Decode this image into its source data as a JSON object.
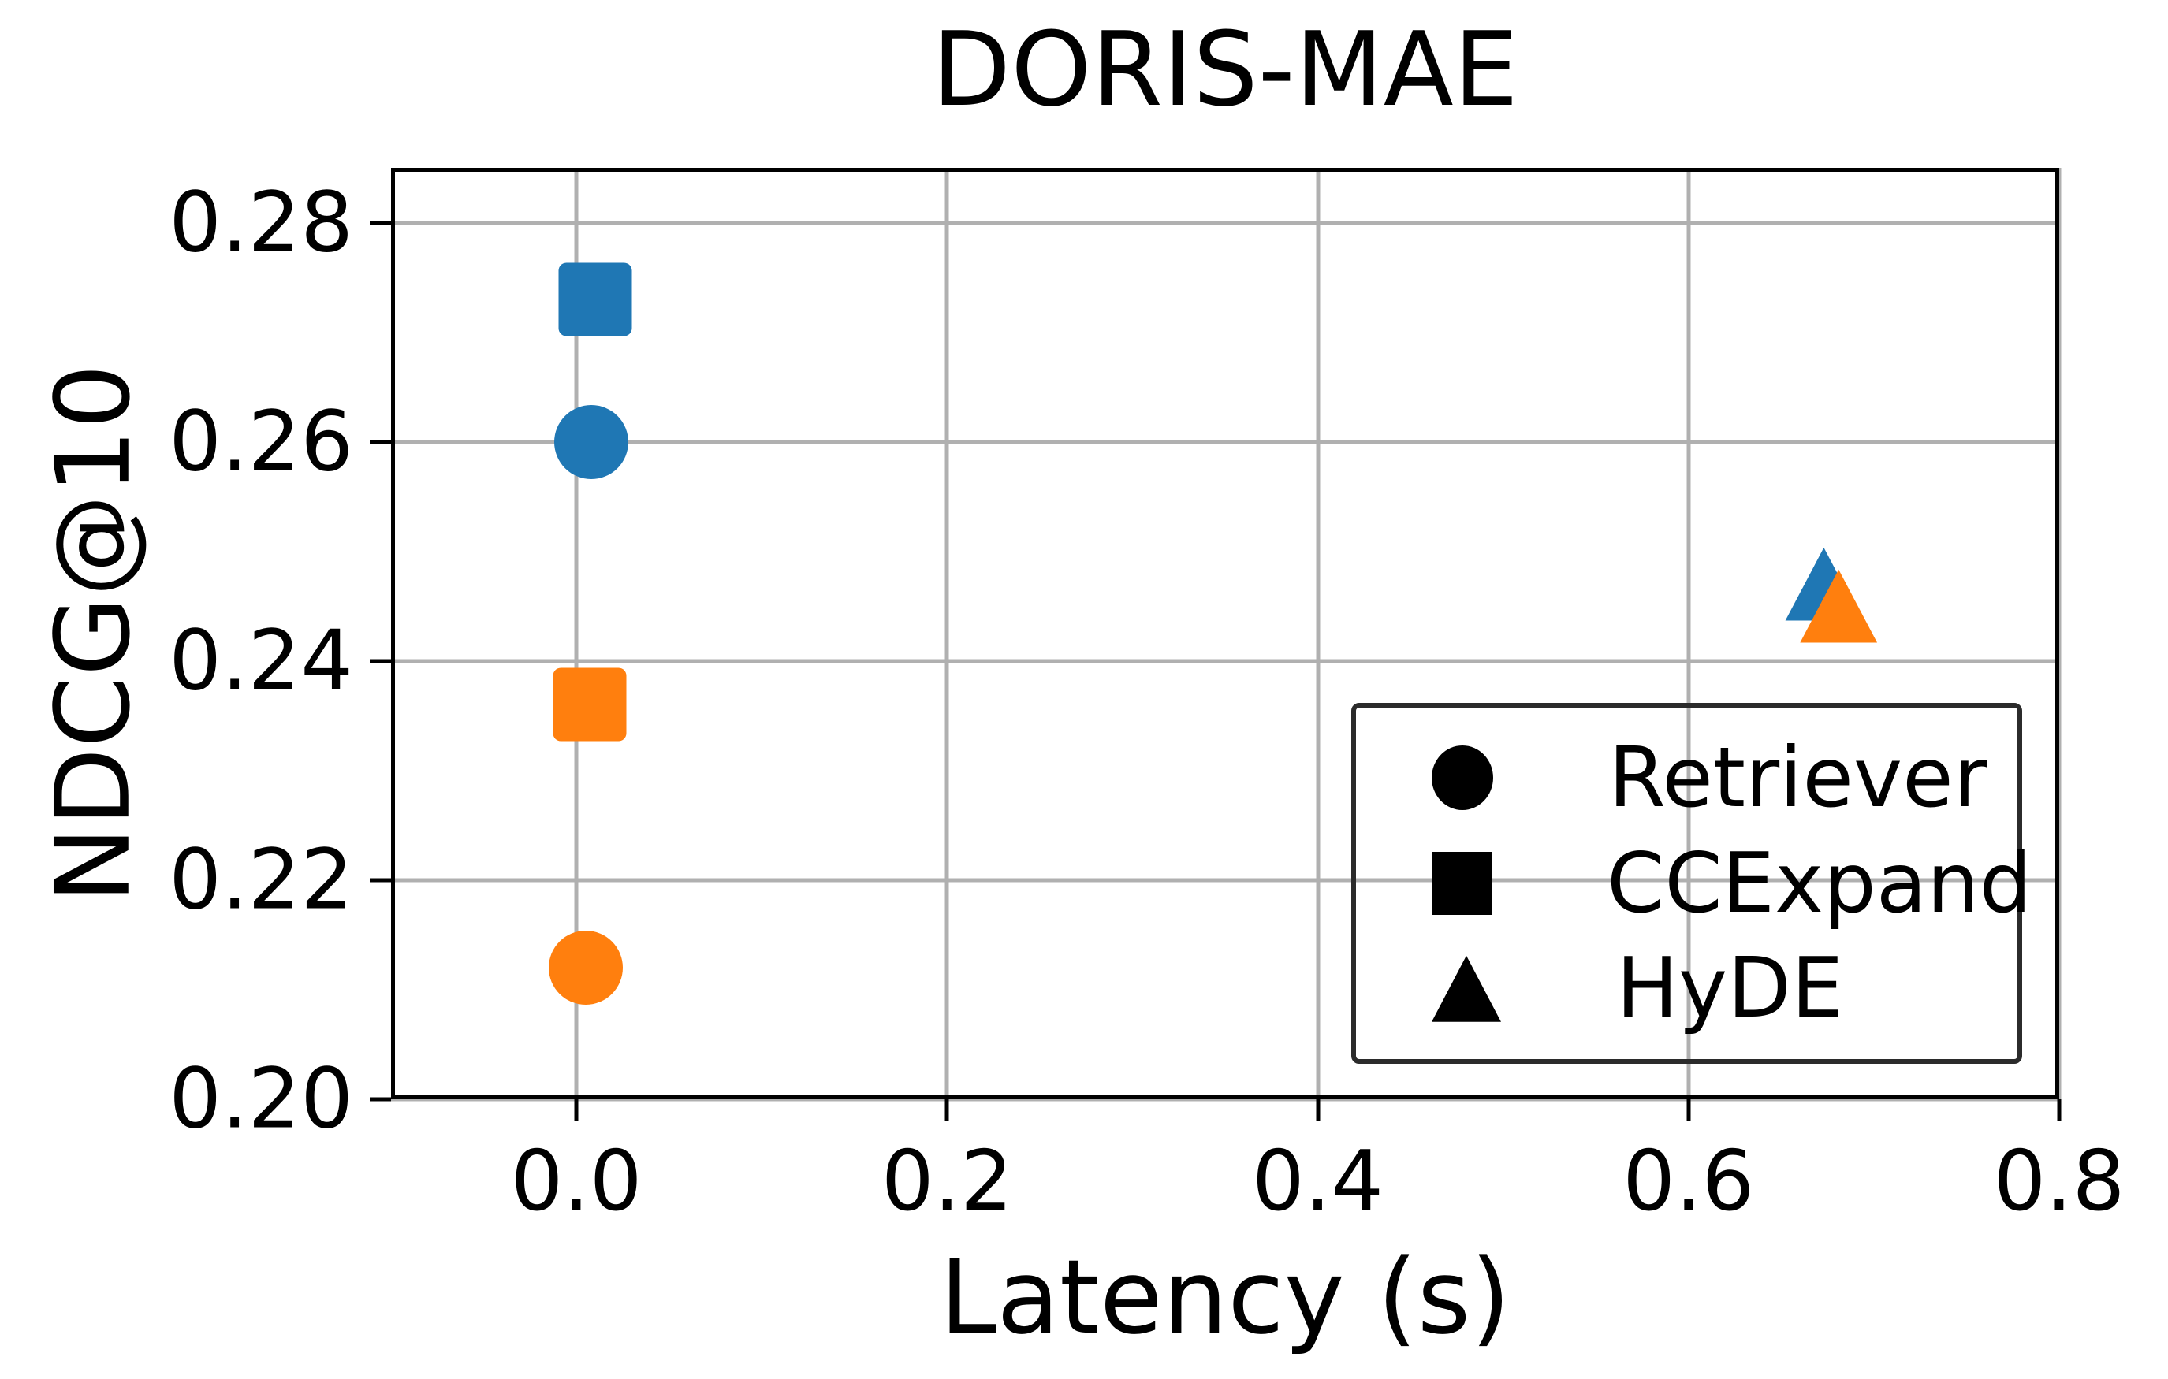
{
  "title": "DORIS-MAE",
  "chart_data": {
    "type": "scatter",
    "title": "DORIS-MAE",
    "xlabel": "Latency (s)",
    "ylabel": "NDCG@10",
    "xlim": [
      -0.1,
      0.8
    ],
    "ylim": [
      0.2,
      0.285
    ],
    "grid": true,
    "grid_color": "#b0b0b0",
    "xticks": [
      0.0,
      0.2,
      0.4,
      0.6,
      0.8
    ],
    "xtick_labels": [
      "0.0",
      "0.2",
      "0.4",
      "0.6",
      "0.8"
    ],
    "yticks": [
      0.2,
      0.22,
      0.24,
      0.26,
      0.28
    ],
    "ytick_labels": [
      "0.20",
      "0.22",
      "0.24",
      "0.26",
      "0.28"
    ],
    "colors": {
      "blue": "#1f77b4",
      "orange": "#ff7f0e",
      "legend_marker": "#000000",
      "legend_border": "#2b2b2b"
    },
    "series": [
      {
        "name": "Retriever",
        "marker": "circle",
        "points": [
          {
            "x": 0.008,
            "y": 0.26,
            "color": "#1f77b4"
          },
          {
            "x": 0.005,
            "y": 0.212,
            "color": "#ff7f0e"
          }
        ]
      },
      {
        "name": "CCExpand",
        "marker": "square",
        "points": [
          {
            "x": 0.01,
            "y": 0.273,
            "color": "#1f77b4"
          },
          {
            "x": 0.007,
            "y": 0.236,
            "color": "#ff7f0e"
          }
        ]
      },
      {
        "name": "HyDE",
        "marker": "triangle",
        "points": [
          {
            "x": 0.673,
            "y": 0.247,
            "color": "#1f77b4"
          },
          {
            "x": 0.681,
            "y": 0.245,
            "color": "#ff7f0e"
          }
        ]
      }
    ],
    "legend": {
      "position": "lower right",
      "entries": [
        {
          "marker": "circle",
          "label": "Retriever"
        },
        {
          "marker": "square",
          "label": "CCExpand"
        },
        {
          "marker": "triangle",
          "label": "HyDE"
        }
      ]
    }
  }
}
